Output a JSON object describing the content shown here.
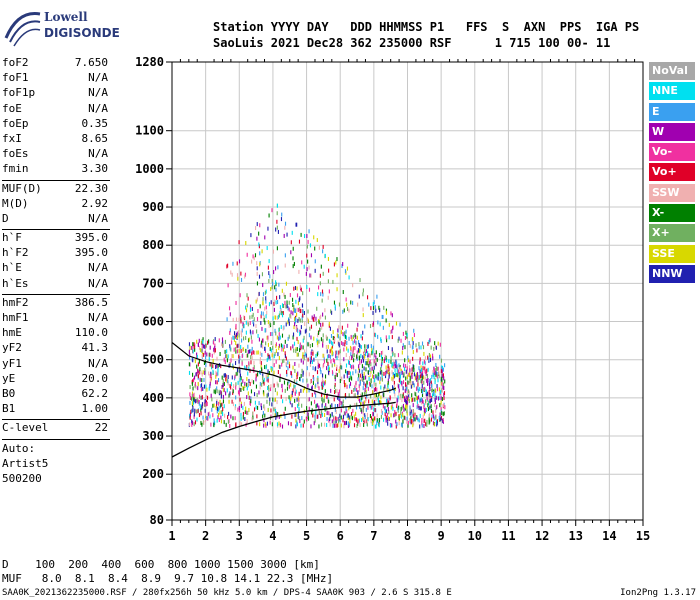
{
  "logo": {
    "line1": "Lowell",
    "line2": "DIGISONDE"
  },
  "header": {
    "line1": "Station YYYY DAY   DDD HHMMSS P1   FFS  S  AXN  PPS  IGA PS",
    "line2": "SaoLuis 2021 Dec28 362 235000 RSF      1 715 100 00- 11"
  },
  "params_groups": [
    [
      [
        "foF2",
        "7.650"
      ],
      [
        "foF1",
        "N/A"
      ],
      [
        "foF1p",
        "N/A"
      ],
      [
        "foE",
        "N/A"
      ],
      [
        "foEp",
        "0.35"
      ],
      [
        "fxI",
        "8.65"
      ],
      [
        "foEs",
        "N/A"
      ],
      [
        "fmin",
        "3.30"
      ]
    ],
    [
      [
        "MUF(D)",
        "22.30"
      ],
      [
        "M(D)",
        "2.92"
      ],
      [
        "D",
        "N/A"
      ]
    ],
    [
      [
        "h`F",
        "395.0"
      ],
      [
        "h`F2",
        "395.0"
      ],
      [
        "h`E",
        "N/A"
      ],
      [
        "h`Es",
        "N/A"
      ]
    ],
    [
      [
        "hmF2",
        "386.5"
      ],
      [
        "hmF1",
        "N/A"
      ],
      [
        "hmE",
        "110.0"
      ],
      [
        "yF2",
        "41.3"
      ],
      [
        "yF1",
        "N/A"
      ],
      [
        "yE",
        "20.0"
      ],
      [
        "B0",
        "62.2"
      ],
      [
        "B1",
        "1.00"
      ]
    ],
    [
      [
        "C-level",
        "22"
      ]
    ]
  ],
  "auto_lines": [
    "Auto:",
    "Artist5",
    "500200"
  ],
  "legend": [
    {
      "label": "NoVal",
      "color": "#a8a8a8"
    },
    {
      "label": "NNE",
      "color": "#00e0f0"
    },
    {
      "label": "E",
      "color": "#3aa0f0"
    },
    {
      "label": "W",
      "color": "#a000b0"
    },
    {
      "label": "Vo-",
      "color": "#f030a0"
    },
    {
      "label": "Vo+",
      "color": "#e00028"
    },
    {
      "label": "SSW",
      "color": "#f0b0b0"
    },
    {
      "label": "X-",
      "color": "#008000"
    },
    {
      "label": "X+",
      "color": "#70b060"
    },
    {
      "label": "SSE",
      "color": "#d8d800"
    },
    {
      "label": "NNW",
      "color": "#2020b0"
    }
  ],
  "muf_table": {
    "d_line": "D    100  200  400  600  800 1000 1500 3000 [km]",
    "muf_line": "MUF   8.0  8.1  8.4  8.9  9.7 10.8 14.1 22.3 [MHz]"
  },
  "footer": {
    "left": "SAA0K_2021362235000.RSF / 280fx256h 50 kHz 5.0 km / DPS-4 SAA0K 903 / 2.6 S 315.8 E",
    "right": "Ion2Png 1.3.17"
  },
  "chart_data": {
    "type": "scatter",
    "x_ticks": [
      1,
      2,
      3,
      4,
      5,
      6,
      7,
      8,
      9,
      10,
      11,
      12,
      13,
      14,
      15
    ],
    "y_ticks": [
      80,
      200,
      300,
      400,
      500,
      600,
      700,
      800,
      900,
      1000,
      1100,
      1280
    ],
    "xlim": [
      1,
      15
    ],
    "ylim": [
      80,
      1280
    ],
    "grid": true,
    "profile_curve": {
      "x": [
        1.0,
        1.5,
        2.0,
        2.5,
        3.0,
        3.5,
        4.0,
        4.5,
        5.0,
        5.5,
        6.0,
        6.5,
        7.0,
        7.5,
        7.65
      ],
      "y": [
        245,
        268,
        290,
        310,
        325,
        338,
        350,
        358,
        365,
        370,
        375,
        379,
        383,
        386,
        388
      ]
    },
    "trace_curve": {
      "x": [
        1.0,
        1.5,
        2.0,
        2.5,
        3.0,
        3.5,
        4.0,
        4.5,
        5.0,
        5.5,
        6.0,
        6.5,
        7.0,
        7.5,
        7.65
      ],
      "y": [
        545,
        510,
        495,
        485,
        478,
        470,
        460,
        445,
        425,
        410,
        402,
        402,
        410,
        420,
        425
      ]
    }
  }
}
